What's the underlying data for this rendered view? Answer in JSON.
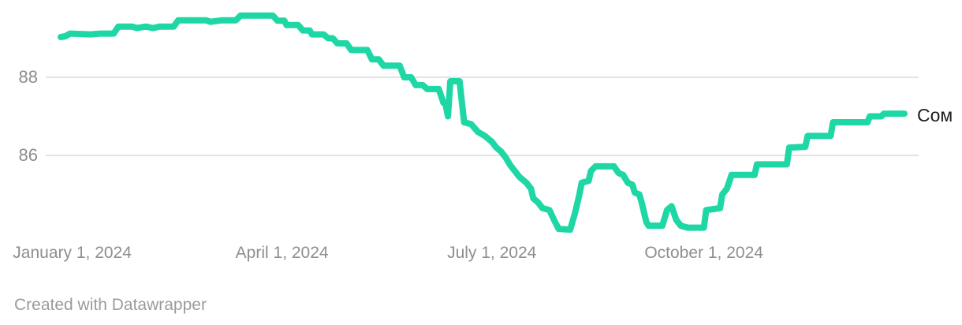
{
  "chart_data": {
    "type": "line",
    "title": "",
    "series_label": "Сом",
    "x_domain": [
      "2023-12-27",
      "2024-12-27"
    ],
    "y_domain": [
      83.9,
      89.98
    ],
    "y_ticks": [
      {
        "value": 88,
        "label": "88"
      },
      {
        "value": 86,
        "label": "86"
      }
    ],
    "x_ticks": [
      {
        "date": "2024-01-01",
        "label": "January 1, 2024"
      },
      {
        "date": "2024-04-01",
        "label": "April 1, 2024"
      },
      {
        "date": "2024-07-01",
        "label": "July 1, 2024"
      },
      {
        "date": "2024-10-01",
        "label": "October 1, 2024"
      }
    ],
    "grid_on": true,
    "legend_position": "end-of-line",
    "line_color": "#1ed7a5",
    "grid_color": "#e3e3e3",
    "tick_color": "#8e8e8e",
    "label_color": "#1d1d1d",
    "series": [
      {
        "name": "Сом",
        "points": [
          [
            "2023-12-27",
            89.03
          ],
          [
            "2023-12-29",
            89.05
          ],
          [
            "2023-12-31",
            89.12
          ],
          [
            "2024-01-09",
            89.1
          ],
          [
            "2024-01-13",
            89.12
          ],
          [
            "2024-01-19",
            89.12
          ],
          [
            "2024-01-21",
            89.3
          ],
          [
            "2024-01-27",
            89.3
          ],
          [
            "2024-01-29",
            89.26
          ],
          [
            "2024-02-02",
            89.3
          ],
          [
            "2024-02-05",
            89.26
          ],
          [
            "2024-02-08",
            89.3
          ],
          [
            "2024-02-14",
            89.3
          ],
          [
            "2024-02-16",
            89.46
          ],
          [
            "2024-02-28",
            89.46
          ],
          [
            "2024-03-01",
            89.42
          ],
          [
            "2024-03-06",
            89.46
          ],
          [
            "2024-03-12",
            89.46
          ],
          [
            "2024-03-14",
            89.58
          ],
          [
            "2024-03-28",
            89.58
          ],
          [
            "2024-03-30",
            89.45
          ],
          [
            "2024-04-02",
            89.45
          ],
          [
            "2024-04-03",
            89.34
          ],
          [
            "2024-04-08",
            89.34
          ],
          [
            "2024-04-10",
            89.2
          ],
          [
            "2024-04-13",
            89.2
          ],
          [
            "2024-04-14",
            89.1
          ],
          [
            "2024-04-19",
            89.1
          ],
          [
            "2024-04-21",
            89.0
          ],
          [
            "2024-04-23",
            89.0
          ],
          [
            "2024-04-25",
            88.87
          ],
          [
            "2024-04-29",
            88.87
          ],
          [
            "2024-05-01",
            88.7
          ],
          [
            "2024-05-08",
            88.7
          ],
          [
            "2024-05-10",
            88.46
          ],
          [
            "2024-05-13",
            88.46
          ],
          [
            "2024-05-15",
            88.3
          ],
          [
            "2024-05-22",
            88.3
          ],
          [
            "2024-05-24",
            88.0
          ],
          [
            "2024-05-27",
            88.0
          ],
          [
            "2024-05-29",
            87.8
          ],
          [
            "2024-06-01",
            87.8
          ],
          [
            "2024-06-03",
            87.7
          ],
          [
            "2024-06-08",
            87.7
          ],
          [
            "2024-06-10",
            87.35
          ],
          [
            "2024-06-11",
            87.3
          ],
          [
            "2024-06-12",
            87.0
          ],
          [
            "2024-06-13",
            87.9
          ],
          [
            "2024-06-17",
            87.9
          ],
          [
            "2024-06-19",
            86.85
          ],
          [
            "2024-06-22",
            86.8
          ],
          [
            "2024-06-25",
            86.6
          ],
          [
            "2024-06-28",
            86.5
          ],
          [
            "2024-07-01",
            86.35
          ],
          [
            "2024-07-03",
            86.2
          ],
          [
            "2024-07-05",
            86.1
          ],
          [
            "2024-07-07",
            85.95
          ],
          [
            "2024-07-09",
            85.75
          ],
          [
            "2024-07-11",
            85.6
          ],
          [
            "2024-07-13",
            85.45
          ],
          [
            "2024-07-16",
            85.3
          ],
          [
            "2024-07-18",
            85.15
          ],
          [
            "2024-07-19",
            84.9
          ],
          [
            "2024-07-21",
            84.8
          ],
          [
            "2024-07-23",
            84.65
          ],
          [
            "2024-07-26",
            84.6
          ],
          [
            "2024-07-28",
            84.35
          ],
          [
            "2024-07-30",
            84.12
          ],
          [
            "2024-08-04",
            84.1
          ],
          [
            "2024-08-06",
            84.5
          ],
          [
            "2024-08-08",
            85.0
          ],
          [
            "2024-08-09",
            85.3
          ],
          [
            "2024-08-12",
            85.35
          ],
          [
            "2024-08-13",
            85.6
          ],
          [
            "2024-08-15",
            85.72
          ],
          [
            "2024-08-23",
            85.72
          ],
          [
            "2024-08-25",
            85.55
          ],
          [
            "2024-08-27",
            85.5
          ],
          [
            "2024-08-29",
            85.3
          ],
          [
            "2024-08-31",
            85.25
          ],
          [
            "2024-09-01",
            85.05
          ],
          [
            "2024-09-03",
            85.0
          ],
          [
            "2024-09-04",
            84.8
          ],
          [
            "2024-09-06",
            84.3
          ],
          [
            "2024-09-07",
            84.2
          ],
          [
            "2024-09-13",
            84.2
          ],
          [
            "2024-09-15",
            84.6
          ],
          [
            "2024-09-17",
            84.7
          ],
          [
            "2024-09-19",
            84.35
          ],
          [
            "2024-09-21",
            84.2
          ],
          [
            "2024-09-24",
            84.15
          ],
          [
            "2024-10-01",
            84.15
          ],
          [
            "2024-10-02",
            84.6
          ],
          [
            "2024-10-08",
            84.65
          ],
          [
            "2024-10-09",
            85.0
          ],
          [
            "2024-10-11",
            85.15
          ],
          [
            "2024-10-13",
            85.5
          ],
          [
            "2024-10-23",
            85.5
          ],
          [
            "2024-10-24",
            85.77
          ],
          [
            "2024-11-06",
            85.77
          ],
          [
            "2024-11-07",
            86.2
          ],
          [
            "2024-11-14",
            86.22
          ],
          [
            "2024-11-15",
            86.5
          ],
          [
            "2024-11-25",
            86.5
          ],
          [
            "2024-11-26",
            86.85
          ],
          [
            "2024-12-11",
            86.85
          ],
          [
            "2024-12-12",
            87.0
          ],
          [
            "2024-12-17",
            87.0
          ],
          [
            "2024-12-18",
            87.07
          ],
          [
            "2024-12-27",
            87.07
          ]
        ]
      }
    ]
  },
  "attribution": {
    "text": "Created with Datawrapper"
  }
}
